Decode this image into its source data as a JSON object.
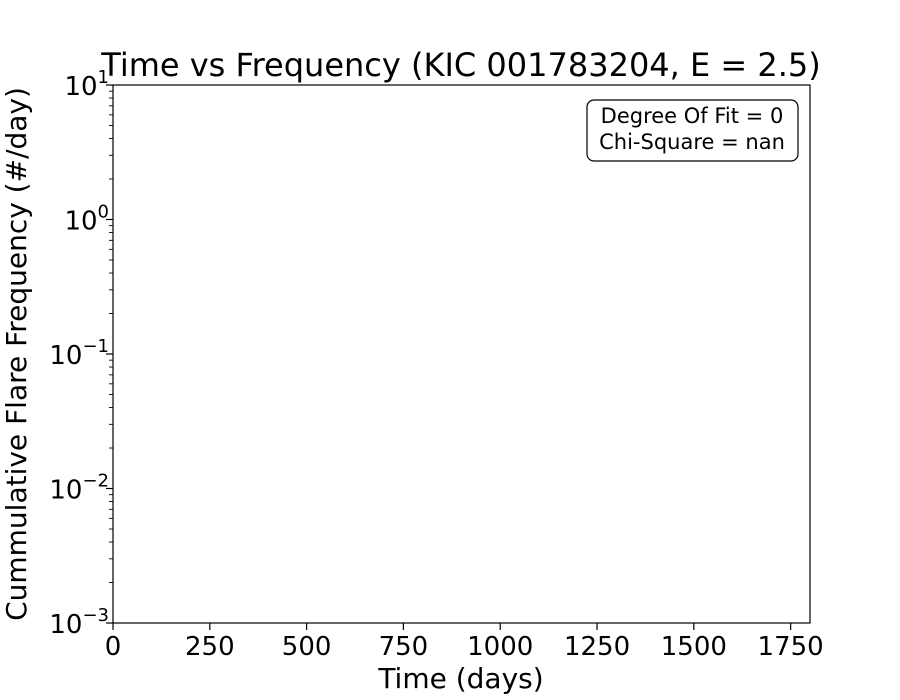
{
  "chart_data": {
    "type": "line",
    "title": "Time vs Frequency (KIC 001783204, E = 2.5)",
    "xlabel": "Time (days)",
    "ylabel": "Cummulative Flare Frequency (#/day)",
    "xlim": [
      0,
      1800
    ],
    "ylim": [
      0.001,
      10
    ],
    "yscale": "log",
    "grid": false,
    "x_ticks": [
      0,
      250,
      500,
      750,
      1000,
      1250,
      1500,
      1750
    ],
    "y_ticks": [
      {
        "value": 0.001,
        "base": "10",
        "exp": "−3"
      },
      {
        "value": 0.01,
        "base": "10",
        "exp": "−2"
      },
      {
        "value": 0.1,
        "base": "10",
        "exp": "−1"
      },
      {
        "value": 1,
        "base": "10",
        "exp": "0"
      },
      {
        "value": 10,
        "base": "10",
        "exp": "1"
      }
    ],
    "series": [],
    "legend": {
      "placement": "top-right",
      "lines": [
        "Degree Of Fit = 0",
        "Chi-Square = nan"
      ]
    }
  }
}
